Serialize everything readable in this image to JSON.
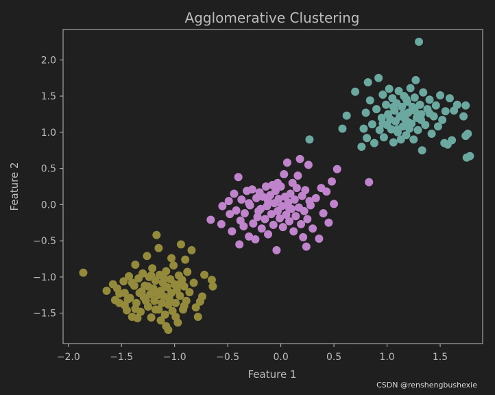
{
  "chart_data": {
    "type": "scatter",
    "title": "Agglomerative Clustering",
    "xlabel": "Feature 1",
    "ylabel": "Feature 2",
    "xlim": [
      -2.05,
      1.9
    ],
    "ylim": [
      -1.92,
      2.42
    ],
    "xticks": [
      -2.0,
      -1.5,
      -1.0,
      -0.5,
      0.0,
      0.5,
      1.0,
      1.5
    ],
    "yticks": [
      -1.5,
      -1.0,
      -0.5,
      0.0,
      0.5,
      1.0,
      1.5,
      2.0
    ],
    "xtick_labels": [
      "−2.0",
      "−1.5",
      "−1.0",
      "−0.5",
      "0.0",
      "0.5",
      "1.0",
      "1.5"
    ],
    "ytick_labels": [
      "−1.5",
      "−1.0",
      "−0.5",
      "0.0",
      "0.5",
      "1.0",
      "1.5",
      "2.0"
    ],
    "grid": false,
    "legend": "none",
    "colors": {
      "background": "#1f1f1f",
      "axes_face": "#202020",
      "spine": "#bdbdbd",
      "text": "#bdbdbd"
    },
    "series": [
      {
        "color": "#948a3c",
        "points": [
          [
            -1.86,
            -0.94
          ],
          [
            -1.64,
            -1.19
          ],
          [
            -1.58,
            -1.1
          ],
          [
            -1.56,
            -1.32
          ],
          [
            -1.54,
            -1.16
          ],
          [
            -1.52,
            -1.36
          ],
          [
            -1.48,
            -1.06
          ],
          [
            -1.47,
            -1.22
          ],
          [
            -1.45,
            -1.46
          ],
          [
            -1.43,
            -0.99
          ],
          [
            -1.42,
            -1.29
          ],
          [
            -1.4,
            -1.55
          ],
          [
            -1.38,
            -1.12
          ],
          [
            -1.37,
            -0.83
          ],
          [
            -1.36,
            -1.36
          ],
          [
            -1.34,
            -1.02
          ],
          [
            -1.33,
            -1.22
          ],
          [
            -1.32,
            -1.48
          ],
          [
            -1.3,
            -0.95
          ],
          [
            -1.29,
            -1.28
          ],
          [
            -1.28,
            -1.12
          ],
          [
            -1.26,
            -0.71
          ],
          [
            -1.25,
            -1.41
          ],
          [
            -1.24,
            -1.0
          ],
          [
            -1.23,
            -1.24
          ],
          [
            -1.22,
            -1.56
          ],
          [
            -1.21,
            -0.88
          ],
          [
            -1.2,
            -1.16
          ],
          [
            -1.19,
            -1.33
          ],
          [
            -1.18,
            -1.05
          ],
          [
            -1.17,
            -0.42
          ],
          [
            -1.16,
            -1.25
          ],
          [
            -1.15,
            -1.45
          ],
          [
            -1.14,
            -0.97
          ],
          [
            -1.13,
            -1.19
          ],
          [
            -1.12,
            -1.36
          ],
          [
            -1.11,
            -1.08
          ],
          [
            -1.1,
            -1.27
          ],
          [
            -1.09,
            -1.52
          ],
          [
            -1.08,
            -0.92
          ],
          [
            -1.07,
            -1.14
          ],
          [
            -1.06,
            -1.73
          ],
          [
            -1.05,
            -1.3
          ],
          [
            -1.04,
            -1.03
          ],
          [
            -1.03,
            -1.22
          ],
          [
            -1.02,
            -1.47
          ],
          [
            -1.01,
            -0.84
          ],
          [
            -1.0,
            -1.1
          ],
          [
            -0.99,
            -1.36
          ],
          [
            -0.98,
            -1.18
          ],
          [
            -0.97,
            -1.63
          ],
          [
            -0.96,
            -0.98
          ],
          [
            -0.95,
            -1.26
          ],
          [
            -0.94,
            -0.55
          ],
          [
            -0.93,
            -1.04
          ],
          [
            -0.92,
            -1.45
          ],
          [
            -0.91,
            -1.13
          ],
          [
            -0.9,
            -0.76
          ],
          [
            -0.89,
            -1.33
          ],
          [
            -0.88,
            -0.93
          ],
          [
            -0.86,
            -1.21
          ],
          [
            -0.84,
            -0.63
          ],
          [
            -0.82,
            -1.08
          ],
          [
            -0.8,
            -1.42
          ],
          [
            -0.78,
            -1.55
          ],
          [
            -0.76,
            -1.34
          ],
          [
            -0.74,
            -1.27
          ],
          [
            -0.72,
            -0.97
          ],
          [
            -0.65,
            -1.04
          ],
          [
            -0.64,
            -1.13
          ],
          [
            -1.52,
            -1.23
          ],
          [
            -1.47,
            -1.39
          ],
          [
            -1.4,
            -1.08
          ],
          [
            -1.35,
            -1.57
          ],
          [
            -1.31,
            -1.2
          ],
          [
            -1.27,
            -1.33
          ],
          [
            -1.22,
            -0.98
          ],
          [
            -1.18,
            -1.45
          ],
          [
            -1.13,
            -1.6
          ],
          [
            -1.1,
            -1.02
          ],
          [
            -1.06,
            -1.38
          ],
          [
            -1.03,
            -0.74
          ],
          [
            -0.99,
            -1.55
          ],
          [
            -0.95,
            -1.1
          ],
          [
            -0.91,
            -1.4
          ],
          [
            -1.44,
            -1.31
          ],
          [
            -1.37,
            -1.44
          ],
          [
            -1.25,
            -1.13
          ],
          [
            -1.15,
            -0.6
          ],
          [
            -1.08,
            -1.68
          ]
        ]
      },
      {
        "color": "#c084cc",
        "points": [
          [
            -0.66,
            -0.21
          ],
          [
            -0.56,
            -0.27
          ],
          [
            -0.55,
            -0.02
          ],
          [
            -0.49,
            0.05
          ],
          [
            -0.48,
            -0.13
          ],
          [
            -0.46,
            -0.37
          ],
          [
            -0.44,
            0.15
          ],
          [
            -0.42,
            -0.08
          ],
          [
            -0.4,
            0.38
          ],
          [
            -0.39,
            -0.55
          ],
          [
            -0.38,
            -0.22
          ],
          [
            -0.37,
            0.07
          ],
          [
            -0.35,
            -0.3
          ],
          [
            -0.34,
            -0.12
          ],
          [
            -0.32,
            0.19
          ],
          [
            -0.3,
            -0.44
          ],
          [
            -0.29,
            -0.01
          ],
          [
            -0.27,
            0.21
          ],
          [
            -0.26,
            -0.26
          ],
          [
            -0.24,
            -0.48
          ],
          [
            -0.23,
            0.09
          ],
          [
            -0.22,
            -0.17
          ],
          [
            -0.2,
            0.17
          ],
          [
            -0.19,
            -0.06
          ],
          [
            -0.18,
            -0.33
          ],
          [
            -0.17,
            0.11
          ],
          [
            -0.15,
            -0.2
          ],
          [
            -0.14,
            0.25
          ],
          [
            -0.13,
            -0.02
          ],
          [
            -0.12,
            -0.41
          ],
          [
            -0.1,
            0.13
          ],
          [
            -0.09,
            -0.13
          ],
          [
            -0.08,
            0.27
          ],
          [
            -0.07,
            -0.28
          ],
          [
            -0.06,
            0.02
          ],
          [
            -0.05,
            0.19
          ],
          [
            -0.04,
            -0.63
          ],
          [
            -0.03,
            -0.09
          ],
          [
            -0.02,
            0.08
          ],
          [
            -0.01,
            -0.19
          ],
          [
            0.0,
            0.25
          ],
          [
            0.01,
            -0.02
          ],
          [
            0.02,
            -0.31
          ],
          [
            0.03,
            0.42
          ],
          [
            0.04,
            0.11
          ],
          [
            0.05,
            -0.14
          ],
          [
            0.06,
            0.58
          ],
          [
            0.07,
            0.03
          ],
          [
            0.08,
            -0.23
          ],
          [
            0.09,
            0.15
          ],
          [
            0.1,
            -0.06
          ],
          [
            0.11,
            0.3
          ],
          [
            0.12,
            -0.37
          ],
          [
            0.13,
            0.07
          ],
          [
            0.14,
            -0.16
          ],
          [
            0.16,
            0.4
          ],
          [
            0.17,
            -0.04
          ],
          [
            0.18,
            0.63
          ],
          [
            0.19,
            -0.27
          ],
          [
            0.2,
            0.12
          ],
          [
            0.21,
            -0.45
          ],
          [
            0.22,
            -0.09
          ],
          [
            0.23,
            0.2
          ],
          [
            0.24,
            -0.58
          ],
          [
            0.25,
            -0.2
          ],
          [
            0.26,
            0.55
          ],
          [
            0.28,
            -0.01
          ],
          [
            0.3,
            -0.33
          ],
          [
            0.33,
            0.09
          ],
          [
            0.36,
            -0.47
          ],
          [
            0.38,
            0.23
          ],
          [
            0.4,
            -0.12
          ],
          [
            0.43,
            0.18
          ],
          [
            0.45,
            -0.25
          ],
          [
            0.48,
            0.32
          ],
          [
            0.5,
            0.01
          ],
          [
            0.53,
            0.49
          ],
          [
            0.83,
            0.31
          ],
          [
            -0.12,
            0.05
          ],
          [
            -0.03,
            0.3
          ],
          [
            0.08,
            -0.05
          ],
          [
            -0.21,
            -0.09
          ],
          [
            0.15,
            0.23
          ],
          [
            0.27,
            0.05
          ],
          [
            -0.3,
            0.02
          ]
        ]
      },
      {
        "color": "#6aa8a0",
        "points": [
          [
            0.27,
            0.9
          ],
          [
            0.58,
            1.05
          ],
          [
            0.62,
            1.23
          ],
          [
            0.7,
            1.56
          ],
          [
            0.76,
            0.8
          ],
          [
            0.78,
            1.05
          ],
          [
            0.8,
            1.27
          ],
          [
            0.81,
            0.92
          ],
          [
            0.82,
            1.69
          ],
          [
            0.84,
            1.44
          ],
          [
            0.86,
            1.11
          ],
          [
            0.88,
            0.85
          ],
          [
            0.9,
            1.32
          ],
          [
            0.92,
            1.75
          ],
          [
            0.93,
            1.03
          ],
          [
            0.95,
            1.2
          ],
          [
            0.96,
            1.52
          ],
          [
            0.97,
            0.93
          ],
          [
            0.99,
            1.38
          ],
          [
            1.0,
            1.1
          ],
          [
            1.01,
            1.25
          ],
          [
            1.02,
            1.6
          ],
          [
            1.04,
            1.04
          ],
          [
            1.05,
            1.47
          ],
          [
            1.06,
            0.86
          ],
          [
            1.07,
            1.3
          ],
          [
            1.08,
            1.15
          ],
          [
            1.09,
            1.4
          ],
          [
            1.1,
            1.0
          ],
          [
            1.11,
            1.57
          ],
          [
            1.12,
            1.22
          ],
          [
            1.13,
            0.9
          ],
          [
            1.14,
            1.35
          ],
          [
            1.15,
            1.08
          ],
          [
            1.16,
            1.5
          ],
          [
            1.17,
            1.18
          ],
          [
            1.18,
            0.96
          ],
          [
            1.19,
            1.42
          ],
          [
            1.2,
            1.27
          ],
          [
            1.21,
            1.05
          ],
          [
            1.22,
            1.61
          ],
          [
            1.23,
            1.12
          ],
          [
            1.24,
            1.35
          ],
          [
            1.25,
            0.9
          ],
          [
            1.26,
            1.48
          ],
          [
            1.27,
            1.72
          ],
          [
            1.28,
            1.2
          ],
          [
            1.29,
            1.03
          ],
          [
            1.3,
            2.25
          ],
          [
            1.31,
            1.38
          ],
          [
            1.32,
            1.25
          ],
          [
            1.33,
            0.75
          ],
          [
            1.34,
            1.55
          ],
          [
            1.36,
            1.1
          ],
          [
            1.38,
            1.32
          ],
          [
            1.4,
            1.45
          ],
          [
            1.42,
            0.98
          ],
          [
            1.44,
            1.22
          ],
          [
            1.46,
            1.37
          ],
          [
            1.48,
            1.08
          ],
          [
            1.5,
            1.51
          ],
          [
            1.52,
            1.17
          ],
          [
            1.55,
            1.29
          ],
          [
            1.57,
            0.83
          ],
          [
            1.59,
            1.47
          ],
          [
            1.61,
            0.89
          ],
          [
            1.63,
            1.3
          ],
          [
            1.66,
            1.38
          ],
          [
            1.72,
            1.22
          ],
          [
            1.74,
            0.95
          ],
          [
            1.76,
            0.98
          ],
          [
            1.75,
            0.65
          ],
          [
            1.78,
            0.67
          ],
          [
            1.74,
            1.37
          ],
          [
            1.54,
            0.85
          ],
          [
            1.06,
            1.35
          ],
          [
            1.15,
            1.25
          ],
          [
            1.2,
            1.14
          ],
          [
            1.03,
            1.18
          ],
          [
            1.26,
            1.3
          ],
          [
            0.96,
            1.12
          ],
          [
            1.18,
            1.46
          ],
          [
            1.32,
            1.17
          ],
          [
            1.1,
            1.04
          ],
          [
            1.4,
            1.26
          ]
        ]
      }
    ]
  },
  "footer": {
    "watermark": "CSDN @renshengbushexie"
  }
}
